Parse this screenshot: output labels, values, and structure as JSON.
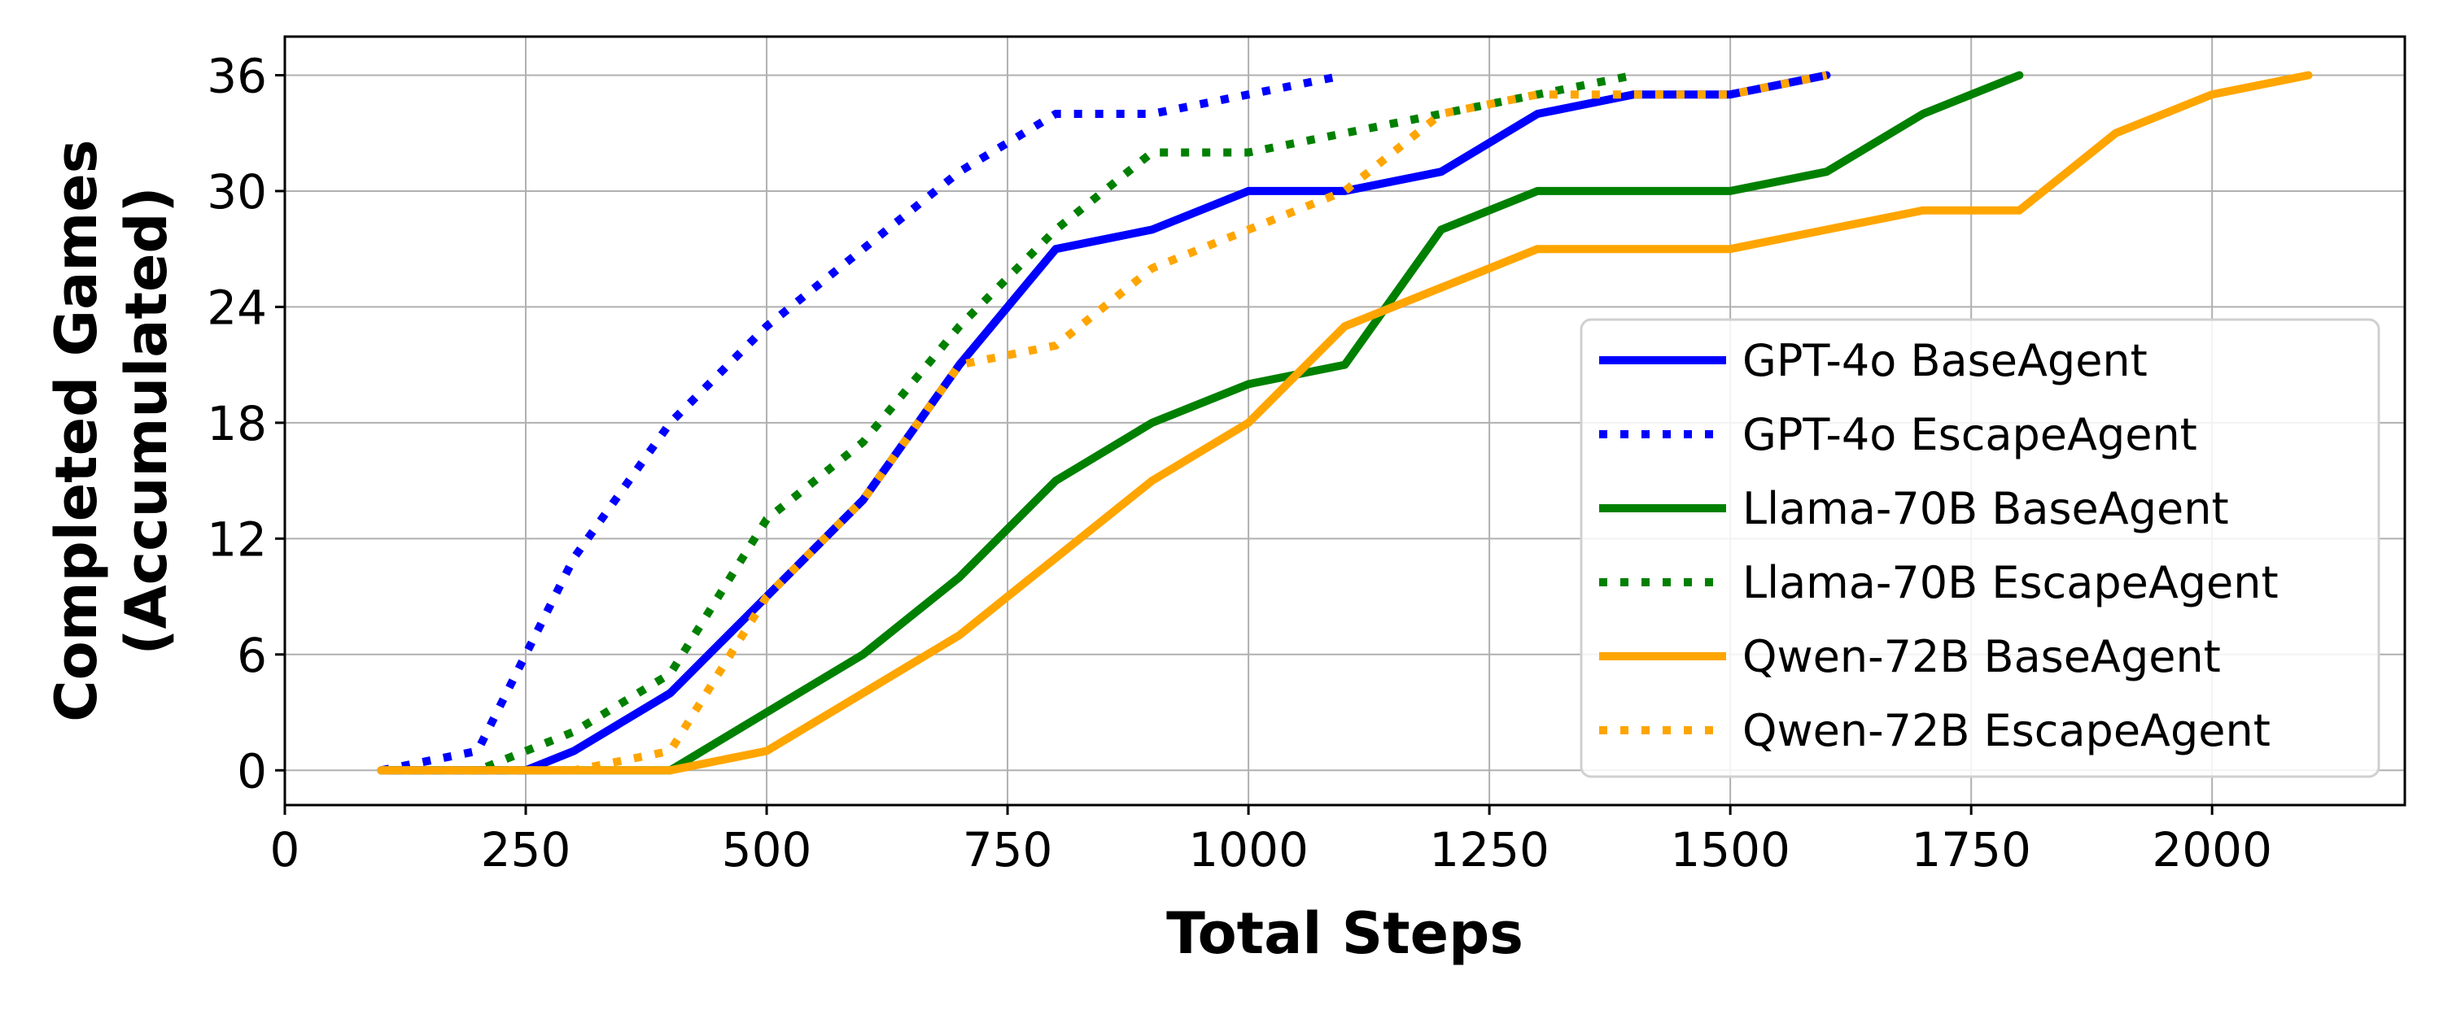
{
  "chart_data": {
    "type": "line",
    "xlabel": "Total Steps",
    "ylabel_lines": [
      "Completed Games",
      "(Accumulated)"
    ],
    "xlim": [
      0,
      2200
    ],
    "ylim": [
      -1.8,
      38
    ],
    "xticks": [
      0,
      250,
      500,
      750,
      1000,
      1250,
      1500,
      1750,
      2000
    ],
    "yticks": [
      0,
      6,
      12,
      18,
      24,
      30,
      36
    ],
    "grid": true,
    "legend_position": "lower-right",
    "series": [
      {
        "name": "GPT-4o BaseAgent",
        "color": "#0000ff",
        "style": "solid",
        "x": [
          100,
          200,
          250,
          300,
          400,
          500,
          600,
          700,
          800,
          900,
          1000,
          1100,
          1200,
          1300,
          1400,
          1500,
          1600
        ],
        "y": [
          0,
          0,
          0,
          1,
          4,
          9,
          14,
          21,
          27,
          28,
          30,
          30,
          31,
          34,
          35,
          35,
          36
        ]
      },
      {
        "name": "GPT-4o EscapeAgent",
        "color": "#0000ff",
        "style": "dotted",
        "x": [
          100,
          200,
          250,
          300,
          400,
          500,
          600,
          700,
          800,
          900,
          1000,
          1100
        ],
        "y": [
          0,
          1,
          6,
          11,
          18,
          23,
          27,
          31,
          34,
          34,
          35,
          36
        ]
      },
      {
        "name": "Llama-70B BaseAgent",
        "color": "#008000",
        "style": "solid",
        "x": [
          100,
          200,
          300,
          400,
          500,
          600,
          700,
          800,
          900,
          1000,
          1100,
          1200,
          1300,
          1400,
          1500,
          1600,
          1700,
          1800
        ],
        "y": [
          0,
          0,
          0,
          0,
          3,
          6,
          10,
          15,
          18,
          20,
          21,
          28,
          30,
          30,
          30,
          31,
          34,
          36
        ]
      },
      {
        "name": "Llama-70B EscapeAgent",
        "color": "#008000",
        "style": "dotted",
        "x": [
          100,
          200,
          300,
          400,
          500,
          600,
          700,
          800,
          900,
          1000,
          1100,
          1200,
          1300,
          1400
        ],
        "y": [
          0,
          0,
          2,
          5,
          13,
          17,
          23,
          28,
          32,
          32,
          33,
          34,
          35,
          36
        ]
      },
      {
        "name": "Qwen-72B BaseAgent",
        "color": "#ffa500",
        "style": "solid",
        "x": [
          100,
          200,
          300,
          400,
          500,
          600,
          700,
          800,
          900,
          1000,
          1100,
          1200,
          1300,
          1400,
          1500,
          1600,
          1700,
          1800,
          1900,
          2000,
          2100
        ],
        "y": [
          0,
          0,
          0,
          0,
          1,
          4,
          7,
          11,
          15,
          18,
          23,
          25,
          27,
          27,
          27,
          28,
          29,
          29,
          33,
          35,
          36
        ]
      },
      {
        "name": "Qwen-72B EscapeAgent",
        "color": "#ffa500",
        "style": "dotted",
        "x": [
          100,
          200,
          300,
          400,
          500,
          600,
          700,
          800,
          900,
          1000,
          1100,
          1200,
          1300,
          1400,
          1500,
          1600
        ],
        "y": [
          0,
          0,
          0,
          1,
          9,
          14,
          21,
          22,
          26,
          28,
          30,
          34,
          35,
          35,
          35,
          36
        ]
      }
    ]
  }
}
